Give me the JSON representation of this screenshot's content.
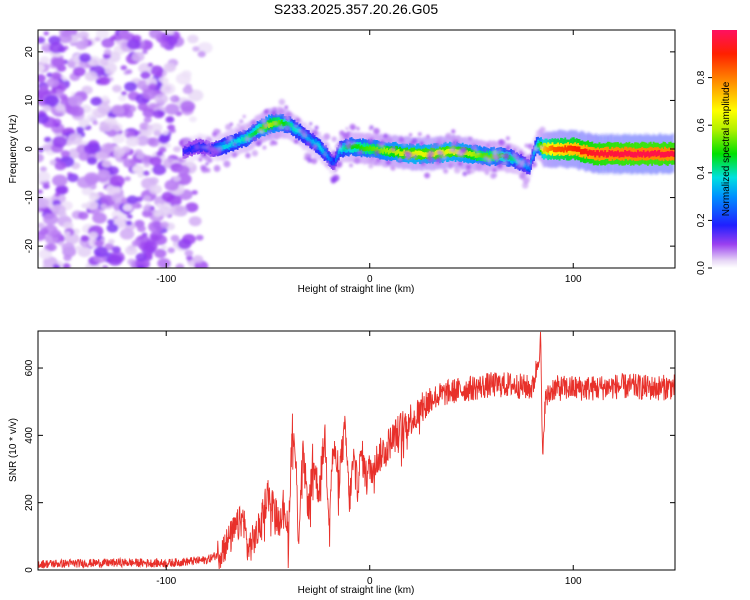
{
  "title": "S233.2025.357.20.26.G05",
  "chart_data": [
    {
      "type": "heatmap",
      "xlabel": "Height of straight line (km)",
      "ylabel": "Frequency (Hz)",
      "xlim": [
        -163,
        150
      ],
      "ylim": [
        -24.5,
        24.5
      ],
      "xticks": [
        -100,
        0,
        100
      ],
      "yticks": [
        -20,
        -10,
        0,
        10,
        20
      ],
      "colorbar": {
        "label": "Normalized spectral amplitude",
        "range": [
          0,
          1
        ],
        "ticks": [
          "0.0",
          "0.2",
          "0.4",
          "0.6",
          "0.8"
        ],
        "tick_values": [
          0,
          0.2,
          0.4,
          0.6,
          0.8
        ]
      },
      "ridge": {
        "x": [
          -92,
          -85,
          -78,
          -72,
          -66,
          -60,
          -55,
          -50,
          -45,
          -40,
          -35,
          -30,
          -25,
          -22,
          -20,
          -18,
          -15,
          -10,
          0,
          10,
          20,
          30,
          40,
          50,
          55,
          60,
          65,
          70,
          75,
          78,
          80,
          82,
          85,
          90,
          100,
          110,
          120,
          130,
          140,
          149
        ],
        "freq": [
          -0.5,
          0.5,
          0.0,
          0.5,
          1.5,
          2.5,
          4.0,
          5.0,
          5.5,
          5.0,
          3.5,
          2.0,
          0.5,
          -1.0,
          -2.0,
          -3.0,
          0.0,
          0.5,
          0.0,
          -0.5,
          -1.0,
          -1.0,
          -0.5,
          -1.0,
          -1.5,
          -1.5,
          -1.5,
          -2.0,
          -3.0,
          -4.0,
          -1.0,
          1.0,
          0.0,
          0.0,
          0.0,
          -1.0,
          -1.0,
          -1.0,
          -1.0,
          -1.0
        ],
        "amplitude": [
          0.15,
          0.2,
          0.2,
          0.35,
          0.35,
          0.4,
          0.45,
          0.55,
          0.5,
          0.4,
          0.35,
          0.3,
          0.35,
          0.3,
          0.25,
          0.2,
          0.35,
          0.45,
          0.5,
          0.55,
          0.6,
          0.6,
          0.6,
          0.55,
          0.5,
          0.5,
          0.45,
          0.4,
          0.3,
          0.25,
          0.3,
          0.4,
          0.7,
          0.8,
          0.85,
          0.9,
          0.92,
          0.93,
          0.93,
          0.92
        ]
      },
      "noise_region": {
        "x_from": -163,
        "x_to": -80,
        "freq_from": -24.5,
        "freq_to": 24.5,
        "amplitude_range": [
          0.02,
          0.12
        ]
      }
    },
    {
      "type": "line",
      "xlabel": "Height of straight line (km)",
      "ylabel": "SNR (10 * v/v)",
      "xlim": [
        -163,
        150
      ],
      "ylim": [
        0,
        710
      ],
      "xticks": [
        -100,
        0,
        100
      ],
      "yticks": [
        0,
        200,
        400,
        600
      ],
      "series": [
        {
          "name": "SNR",
          "color": "#e8302a",
          "x": [
            -163,
            -140,
            -120,
            -100,
            -90,
            -80,
            -75,
            -70,
            -65,
            -62,
            -60,
            -55,
            -50,
            -45,
            -42,
            -40,
            -38,
            -36,
            -35,
            -33,
            -30,
            -28,
            -25,
            -22,
            -20,
            -18,
            -15,
            -12,
            -10,
            -8,
            -6,
            -4,
            -2,
            0,
            5,
            10,
            15,
            20,
            25,
            30,
            35,
            40,
            50,
            60,
            70,
            80,
            82,
            84,
            85,
            86,
            88,
            90,
            100,
            110,
            120,
            130,
            140,
            150
          ],
          "values": [
            18,
            20,
            22,
            20,
            25,
            30,
            45,
            80,
            130,
            155,
            60,
            110,
            230,
            150,
            200,
            100,
            440,
            280,
            90,
            350,
            180,
            330,
            230,
            400,
            160,
            360,
            290,
            420,
            200,
            330,
            250,
            350,
            280,
            300,
            340,
            380,
            420,
            450,
            470,
            510,
            520,
            530,
            540,
            550,
            550,
            540,
            600,
            680,
            300,
            500,
            520,
            540,
            540,
            540,
            545,
            545,
            540,
            545
          ],
          "noise_amplitude": 16
        }
      ]
    }
  ]
}
